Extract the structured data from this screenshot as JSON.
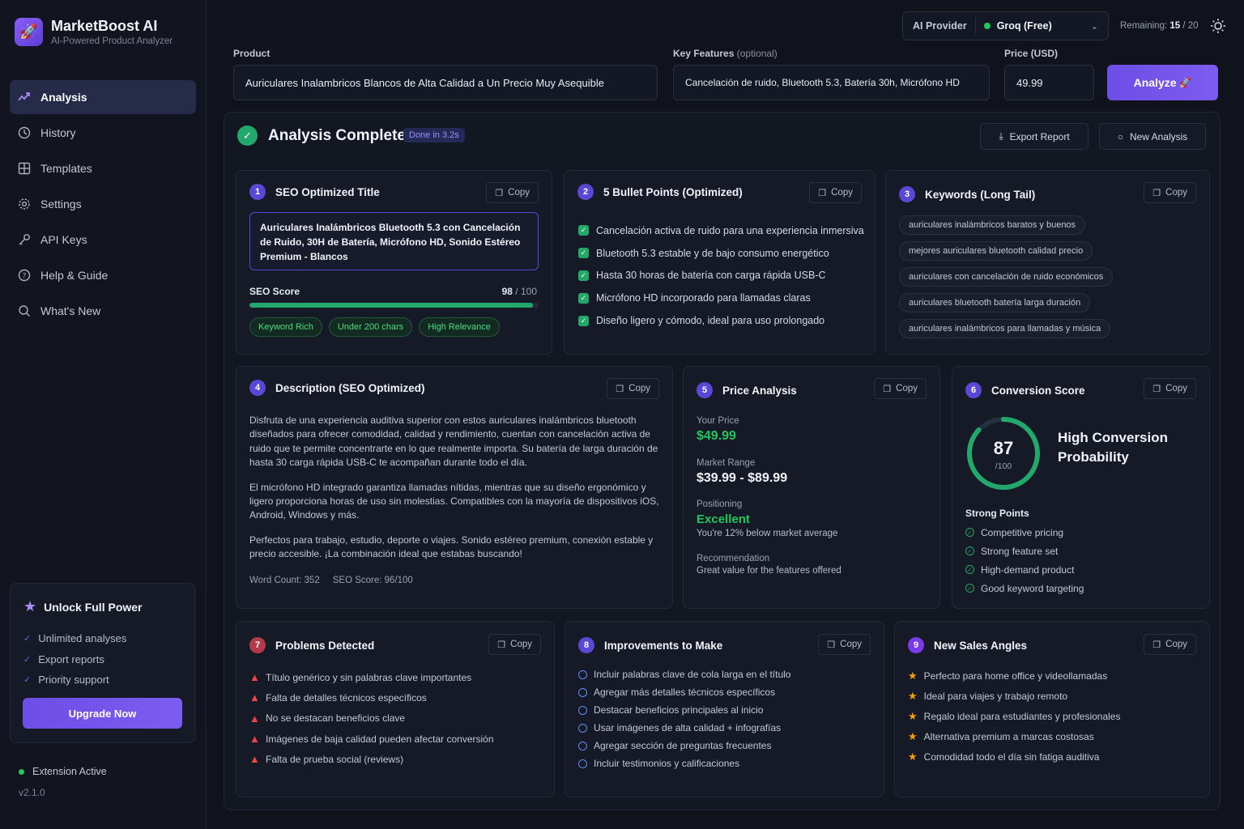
{
  "brand": {
    "name": "MarketBoost AI",
    "subtitle": "AI-Powered Product Analyzer"
  },
  "nav": [
    {
      "label": "Analysis",
      "icon": "trend-icon",
      "active": true
    },
    {
      "label": "History",
      "icon": "clock-icon"
    },
    {
      "label": "Templates",
      "icon": "grid-icon"
    },
    {
      "label": "Settings",
      "icon": "gear-icon"
    },
    {
      "label": "API Keys",
      "icon": "key-icon"
    },
    {
      "label": "Help & Guide",
      "icon": "help-icon"
    },
    {
      "label": "What's New",
      "icon": "search-icon"
    }
  ],
  "unlock": {
    "title": "Unlock Full Power",
    "items": [
      "Unlimited analyses",
      "Export reports",
      "Priority support"
    ],
    "button": "Upgrade Now"
  },
  "status": {
    "text": "Extension Active",
    "version": "v2.1.0"
  },
  "topbar": {
    "provider_label": "AI Provider",
    "provider_value": "Groq (Free)",
    "remaining_label": "Remaining:",
    "remaining_value": "15",
    "remaining_total": "/ 20"
  },
  "form": {
    "product_label": "Product",
    "product_value": "Auriculares Inalambricos Blancos de Alta Calidad a Un Precio Muy Asequible",
    "features_label": "Key Features",
    "features_optional": "(optional)",
    "features_value": "Cancelación de ruido, Bluetooth 5.3, Batería 30h, Micrófono HD",
    "price_label": "Price (USD)",
    "price_value": "49.99",
    "analyze_label": "Analyze"
  },
  "header": {
    "title": "Analysis Complete",
    "badge": "Done in 3.2s",
    "export_label": "Export Report",
    "new_label": "New Analysis"
  },
  "copy_label": "Copy",
  "seo": {
    "num": "1",
    "title": "SEO Optimized Title",
    "text": "Auriculares Inalámbricos Bluetooth 5.3 con Cancelación de Ruido, 30H de Batería, Micrófono HD, Sonido Estéreo Premium - Blancos",
    "score_label": "SEO Score",
    "score": "98",
    "score_max": "/ 100",
    "score_fraction": 0.98,
    "tags": [
      "Keyword Rich",
      "Under 200 chars",
      "High Relevance"
    ]
  },
  "bullets": {
    "num": "2",
    "title": "5 Bullet Points (Optimized)",
    "items": [
      "Cancelación activa de ruido para una experiencia inmersiva",
      "Bluetooth 5.3 estable y de bajo consumo energético",
      "Hasta 30 horas de batería con carga rápida USB-C",
      "Micrófono HD incorporado para llamadas claras",
      "Diseño ligero y cómodo, ideal para uso prolongado"
    ]
  },
  "keywords": {
    "num": "3",
    "title": "Keywords (Long Tail)",
    "items": [
      "auriculares inalámbricos baratos y buenos",
      "mejores auriculares bluetooth calidad precio",
      "auriculares con cancelación de ruido económicos",
      "auriculares bluetooth batería larga duración",
      "auriculares inalámbricos para llamadas y música"
    ]
  },
  "description": {
    "num": "4",
    "title": "Description (SEO Optimized)",
    "paragraphs": [
      "Disfruta de una experiencia auditiva superior con estos auriculares inalámbricos bluetooth diseñados para ofrecer comodidad, calidad y rendimiento, cuentan con cancelación activa de ruido que te permite concentrarte en lo que realmente importa. Su batería de larga duración de hasta 30 carga rápida USB-C te acompañan durante todo el día.",
      "El micrófono HD integrado garantiza llamadas nítidas, mientras que su diseño ergonómico y ligero proporciona horas de uso sin molestias. Compatibles con la mayoría de dispositivos iOS, Android, Windows y más.",
      "Perfectos para trabajo, estudio, deporte o viajes. Sonido estéreo premium, conexión estable y precio accesible. ¡La combinación ideal que estabas buscando!"
    ],
    "word_count": "Word Count: 352",
    "seo_score": "SEO Score: 96/100"
  },
  "price": {
    "num": "5",
    "title": "Price Analysis",
    "your_price_label": "Your Price",
    "your_price": "$49.99",
    "market_label": "Market Range",
    "market_range": "$39.99 - $89.99",
    "positioning_label": "Positioning",
    "positioning": "Excellent",
    "positioning_note": "You're 12% below market average",
    "recommendation_label": "Recommendation",
    "recommendation": "Great value for the features offered"
  },
  "conversion": {
    "num": "6",
    "title": "Conversion Score",
    "score": "87",
    "score_max": "/100",
    "score_fraction": 0.87,
    "label": "High Conversion Probability",
    "strong_title": "Strong Points",
    "strong_points": [
      "Competitive pricing",
      "Strong feature set",
      "High-demand product",
      "Good keyword targeting"
    ]
  },
  "problems": {
    "num": "7",
    "title": "Problems Detected",
    "items": [
      "Título genérico y sin palabras clave importantes",
      "Falta de detalles técnicos específicos",
      "No se destacan beneficios clave",
      "Imágenes de baja calidad pueden afectar conversión",
      "Falta de prueba social (reviews)"
    ]
  },
  "improvements": {
    "num": "8",
    "title": "Improvements to Make",
    "items": [
      "Incluir palabras clave de cola larga en el título",
      "Agregar más detalles técnicos específicos",
      "Destacar beneficios principales al inicio",
      "Usar imágenes de alta calidad + infografías",
      "Agregar sección de preguntas frecuentes",
      "Incluir testimonios y calificaciones"
    ]
  },
  "angles": {
    "num": "9",
    "title": "New Sales Angles",
    "items": [
      "Perfecto para home office y videollamadas",
      "Ideal para viajes y trabajo remoto",
      "Regalo ideal para estudiantes y profesionales",
      "Alternativa premium a marcas costosas",
      "Comodidad todo el día sin fatiga auditiva"
    ]
  }
}
